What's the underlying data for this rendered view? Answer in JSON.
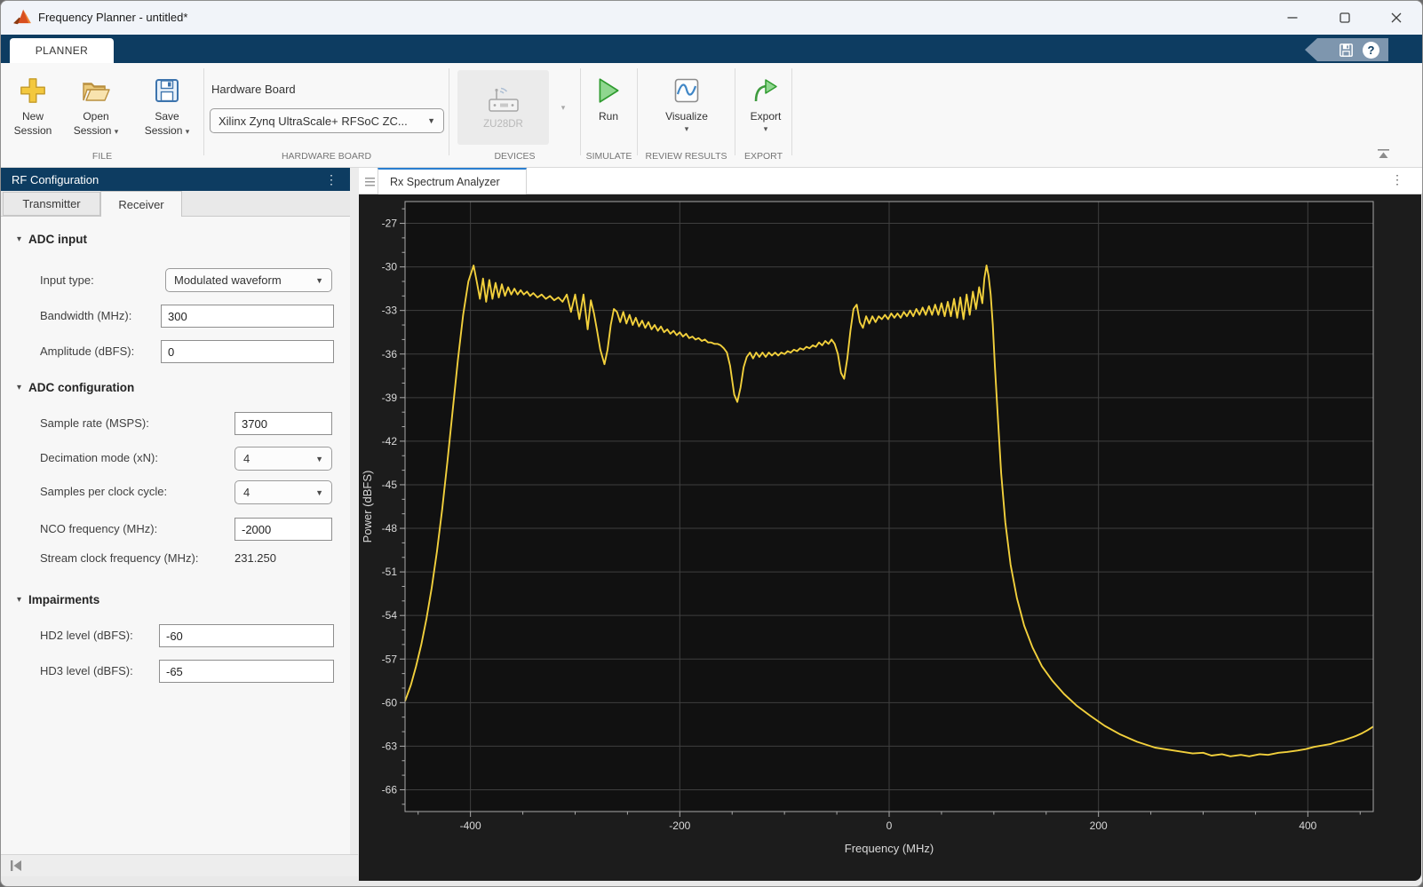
{
  "icons": {
    "dropdown_small": "▾",
    "select_arrow": "▼",
    "ellipsis": "⋮",
    "help": "?"
  },
  "titlebar": {
    "title": "Frequency Planner - untitled*"
  },
  "ribbon": {
    "tab": "PLANNER",
    "file": {
      "label": "FILE",
      "new": [
        "New",
        "Session"
      ],
      "open": [
        "Open",
        "Session"
      ],
      "save": [
        "Save",
        "Session"
      ]
    },
    "hardware": {
      "label": "HARDWARE BOARD",
      "field_label": "Hardware Board",
      "value": "Xilinx Zynq UltraScale+ RFSoC ZC..."
    },
    "devices": {
      "label": "DEVICES",
      "device": "ZU28DR"
    },
    "simulate": {
      "label": "SIMULATE",
      "run": "Run"
    },
    "review": {
      "label": "REVIEW RESULTS",
      "visualize": "Visualize"
    },
    "export": {
      "label": "EXPORT",
      "button": "Export"
    }
  },
  "rf": {
    "title": "RF Configuration",
    "tabs": {
      "transmitter": "Transmitter",
      "receiver": "Receiver"
    },
    "adc_input": {
      "header": "ADC input",
      "input_type": {
        "label": "Input type:",
        "value": "Modulated waveform"
      },
      "bandwidth": {
        "label": "Bandwidth (MHz):",
        "value": "300"
      },
      "amplitude": {
        "label": "Amplitude (dBFS):",
        "value": "0"
      }
    },
    "adc_config": {
      "header": "ADC configuration",
      "sample_rate": {
        "label": "Sample rate (MSPS):",
        "value": "3700"
      },
      "decimation": {
        "label": "Decimation mode (xN):",
        "value": "4"
      },
      "samples_per_clock": {
        "label": "Samples per clock cycle:",
        "value": "4"
      },
      "nco": {
        "label": "NCO frequency (MHz):",
        "value": "-2000"
      },
      "stream_clock": {
        "label": "Stream clock frequency (MHz):",
        "value": "231.250"
      }
    },
    "impairments": {
      "header": "Impairments",
      "hd2": {
        "label": "HD2 level (dBFS):",
        "value": "-60"
      },
      "hd3": {
        "label": "HD3 level (dBFS):",
        "value": "-65"
      }
    }
  },
  "document": {
    "tab": "Rx Spectrum Analyzer"
  },
  "chart_data": {
    "type": "line",
    "title": "",
    "xlabel": "Frequency (MHz)",
    "ylabel": "Power (dBFS)",
    "xlim": [
      -462.5,
      462.5
    ],
    "ylim": [
      -67.5,
      -25.5
    ],
    "xticks": [
      -400,
      -200,
      0,
      200,
      400
    ],
    "yticks": [
      -66,
      -63,
      -60,
      -57,
      -54,
      -51,
      -48,
      -45,
      -42,
      -39,
      -36,
      -33,
      -30,
      -27
    ],
    "x_minor_step": 50,
    "y_minor_step": 1,
    "grid": true,
    "legend": "none",
    "colors": {
      "trace": "#f2d03c",
      "background": "#111111",
      "panel": "#1c1c1c",
      "grid": "#3f3f3f",
      "axis": "#a9a9a9",
      "text": "#d9d9d9"
    },
    "series": [
      {
        "name": "Rx spectrum",
        "points": [
          [
            -462.5,
            -59.9
          ],
          [
            -457,
            -58.8
          ],
          [
            -452,
            -57.5
          ],
          [
            -447,
            -56
          ],
          [
            -442,
            -54.2
          ],
          [
            -437,
            -52.1
          ],
          [
            -432,
            -49.6
          ],
          [
            -427,
            -46.7
          ],
          [
            -422,
            -43.4
          ],
          [
            -417,
            -39.9
          ],
          [
            -412,
            -36.4
          ],
          [
            -407,
            -33.3
          ],
          [
            -402,
            -31
          ],
          [
            -397,
            -29.9
          ],
          [
            -394,
            -31
          ],
          [
            -391,
            -32.2
          ],
          [
            -388,
            -30.8
          ],
          [
            -385,
            -32.4
          ],
          [
            -382,
            -30.9
          ],
          [
            -379,
            -32.2
          ],
          [
            -376,
            -31.1
          ],
          [
            -373,
            -32.1
          ],
          [
            -370,
            -31.2
          ],
          [
            -367,
            -32
          ],
          [
            -364,
            -31.4
          ],
          [
            -361,
            -31.9
          ],
          [
            -358,
            -31.5
          ],
          [
            -355,
            -31.9
          ],
          [
            -352,
            -31.6
          ],
          [
            -349,
            -31.9
          ],
          [
            -346,
            -31.7
          ],
          [
            -343,
            -32
          ],
          [
            -340,
            -31.8
          ],
          [
            -336,
            -32.1
          ],
          [
            -332,
            -31.9
          ],
          [
            -328,
            -32.2
          ],
          [
            -324,
            -32
          ],
          [
            -320,
            -32.3
          ],
          [
            -316,
            -32.1
          ],
          [
            -312,
            -32.4
          ],
          [
            -308,
            -31.9
          ],
          [
            -304,
            -33.1
          ],
          [
            -300,
            -31.9
          ],
          [
            -296,
            -33.6
          ],
          [
            -292,
            -31.9
          ],
          [
            -288,
            -34.3
          ],
          [
            -285,
            -32.3
          ],
          [
            -282,
            -33.2
          ],
          [
            -279,
            -34.4
          ],
          [
            -276,
            -35.7
          ],
          [
            -272,
            -36.7
          ],
          [
            -269,
            -35.7
          ],
          [
            -266,
            -34
          ],
          [
            -263,
            -32.9
          ],
          [
            -260,
            -33.1
          ],
          [
            -257,
            -33.8
          ],
          [
            -254,
            -33.1
          ],
          [
            -251,
            -33.9
          ],
          [
            -248,
            -33.3
          ],
          [
            -245,
            -34
          ],
          [
            -242,
            -33.5
          ],
          [
            -239,
            -34.1
          ],
          [
            -236,
            -33.7
          ],
          [
            -233,
            -34.2
          ],
          [
            -230,
            -33.8
          ],
          [
            -227,
            -34.3
          ],
          [
            -224,
            -34
          ],
          [
            -221,
            -34.4
          ],
          [
            -218,
            -34.1
          ],
          [
            -215,
            -34.5
          ],
          [
            -212,
            -34.3
          ],
          [
            -209,
            -34.6
          ],
          [
            -206,
            -34.4
          ],
          [
            -203,
            -34.7
          ],
          [
            -200,
            -34.5
          ],
          [
            -197,
            -34.8
          ],
          [
            -194,
            -34.6
          ],
          [
            -191,
            -34.9
          ],
          [
            -188,
            -34.8
          ],
          [
            -185,
            -35
          ],
          [
            -182,
            -34.9
          ],
          [
            -179,
            -35.1
          ],
          [
            -176,
            -35
          ],
          [
            -173,
            -35.2
          ],
          [
            -170,
            -35.2
          ],
          [
            -167,
            -35.3
          ],
          [
            -164,
            -35.3
          ],
          [
            -161,
            -35.4
          ],
          [
            -158,
            -35.6
          ],
          [
            -155,
            -35.9
          ],
          [
            -152,
            -36.8
          ],
          [
            -148,
            -38.8
          ],
          [
            -145,
            -39.3
          ],
          [
            -142,
            -38.3
          ],
          [
            -139,
            -36.9
          ],
          [
            -136,
            -36.2
          ],
          [
            -133,
            -35.9
          ],
          [
            -130,
            -36.3
          ],
          [
            -127,
            -35.9
          ],
          [
            -124,
            -36.2
          ],
          [
            -121,
            -35.9
          ],
          [
            -118,
            -36.2
          ],
          [
            -115,
            -35.9
          ],
          [
            -112,
            -36.1
          ],
          [
            -109,
            -35.9
          ],
          [
            -106,
            -36.1
          ],
          [
            -103,
            -35.9
          ],
          [
            -100,
            -36
          ],
          [
            -97,
            -35.8
          ],
          [
            -94,
            -35.9
          ],
          [
            -91,
            -35.7
          ],
          [
            -88,
            -35.8
          ],
          [
            -85,
            -35.6
          ],
          [
            -82,
            -35.7
          ],
          [
            -79,
            -35.5
          ],
          [
            -76,
            -35.6
          ],
          [
            -73,
            -35.4
          ],
          [
            -70,
            -35.5
          ],
          [
            -67,
            -35.2
          ],
          [
            -64,
            -35.4
          ],
          [
            -61,
            -35.1
          ],
          [
            -58,
            -35.3
          ],
          [
            -55,
            -35
          ],
          [
            -52,
            -35.3
          ],
          [
            -49,
            -36
          ],
          [
            -46,
            -37.3
          ],
          [
            -43,
            -37.7
          ],
          [
            -40,
            -36.3
          ],
          [
            -37,
            -34.4
          ],
          [
            -34,
            -32.9
          ],
          [
            -31,
            -32.6
          ],
          [
            -28,
            -33.8
          ],
          [
            -25,
            -34.2
          ],
          [
            -22,
            -33.4
          ],
          [
            -19,
            -33.9
          ],
          [
            -16,
            -33.4
          ],
          [
            -13,
            -33.8
          ],
          [
            -10,
            -33.4
          ],
          [
            -7,
            -33.6
          ],
          [
            -4,
            -33.3
          ],
          [
            -1,
            -33.6
          ],
          [
            2,
            -33.2
          ],
          [
            5,
            -33.5
          ],
          [
            8,
            -33.2
          ],
          [
            11,
            -33.5
          ],
          [
            14,
            -33.1
          ],
          [
            17,
            -33.4
          ],
          [
            20,
            -33
          ],
          [
            23,
            -33.4
          ],
          [
            26,
            -32.9
          ],
          [
            29,
            -33.3
          ],
          [
            32,
            -32.8
          ],
          [
            35,
            -33.3
          ],
          [
            38,
            -32.7
          ],
          [
            41,
            -33.3
          ],
          [
            44,
            -32.6
          ],
          [
            47,
            -33.3
          ],
          [
            50,
            -32.5
          ],
          [
            53,
            -33.4
          ],
          [
            56,
            -32.4
          ],
          [
            59,
            -33.4
          ],
          [
            62,
            -32.2
          ],
          [
            65,
            -33.5
          ],
          [
            68,
            -32.1
          ],
          [
            71,
            -33.6
          ],
          [
            74,
            -31.9
          ],
          [
            77,
            -33.3
          ],
          [
            80,
            -31.7
          ],
          [
            83,
            -32.9
          ],
          [
            86,
            -31.4
          ],
          [
            89,
            -32.5
          ],
          [
            91,
            -30.8
          ],
          [
            93,
            -29.9
          ],
          [
            95,
            -30.6
          ],
          [
            97,
            -31.9
          ],
          [
            99,
            -34
          ],
          [
            101,
            -36.8
          ],
          [
            104,
            -40.6
          ],
          [
            107,
            -44.2
          ],
          [
            111,
            -47.6
          ],
          [
            116,
            -50.5
          ],
          [
            122,
            -52.8
          ],
          [
            129,
            -54.7
          ],
          [
            137,
            -56.2
          ],
          [
            146,
            -57.5
          ],
          [
            156,
            -58.5
          ],
          [
            167,
            -59.4
          ],
          [
            179,
            -60.2
          ],
          [
            192,
            -60.9
          ],
          [
            206,
            -61.6
          ],
          [
            221,
            -62.2
          ],
          [
            237,
            -62.7
          ],
          [
            254,
            -63.1
          ],
          [
            272,
            -63.3
          ],
          [
            290,
            -63.5
          ],
          [
            300,
            -63.45
          ],
          [
            308,
            -63.65
          ],
          [
            318,
            -63.55
          ],
          [
            326,
            -63.7
          ],
          [
            336,
            -63.6
          ],
          [
            344,
            -63.7
          ],
          [
            354,
            -63.55
          ],
          [
            362,
            -63.6
          ],
          [
            372,
            -63.45
          ],
          [
            380,
            -63.4
          ],
          [
            390,
            -63.3
          ],
          [
            398,
            -63.2
          ],
          [
            406,
            -63.05
          ],
          [
            414,
            -62.95
          ],
          [
            422,
            -62.85
          ],
          [
            428,
            -62.7
          ],
          [
            434,
            -62.6
          ],
          [
            440,
            -62.45
          ],
          [
            446,
            -62.3
          ],
          [
            452,
            -62.1
          ],
          [
            457,
            -61.9
          ],
          [
            462.5,
            -61.65
          ]
        ]
      }
    ]
  }
}
